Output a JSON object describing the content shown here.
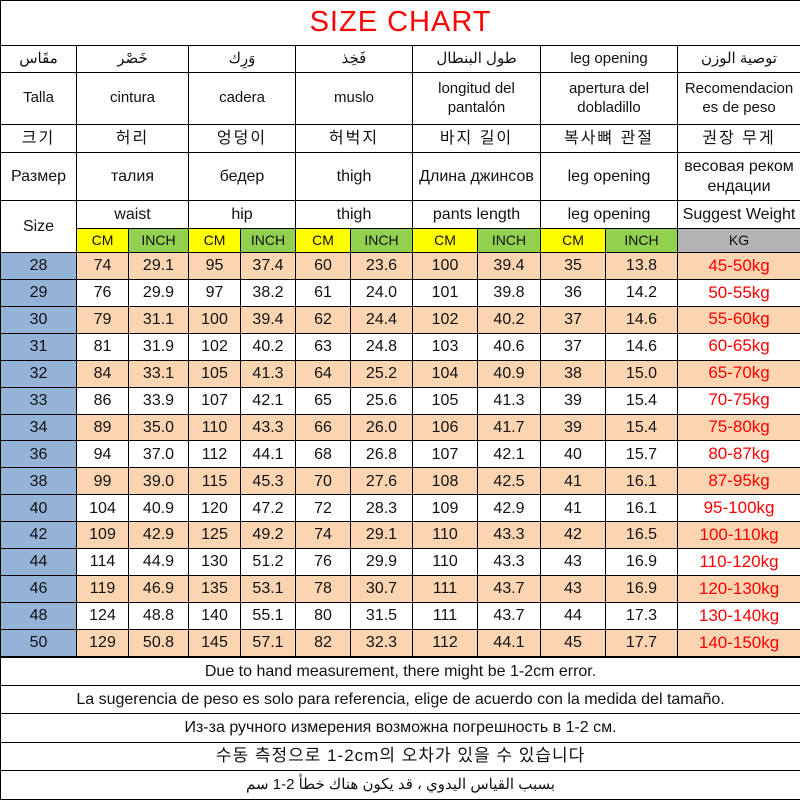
{
  "chart_data": {
    "type": "table",
    "title": "SIZE CHART",
    "header_rows": {
      "arabic": [
        "مقَاس",
        "خَصْر",
        "وَرِك",
        "فَخِذ",
        "طول البنطال",
        "leg opening",
        "توصية الوزن"
      ],
      "spanish": [
        "Talla",
        "cintura",
        "cadera",
        "muslo",
        "longitud del pantalón",
        "apertura del dobladillo",
        "Recomendaciones de peso"
      ],
      "korean": [
        "크기",
        "허리",
        "엉덩이",
        "허벅지",
        "바지 길이",
        "복사뼈 관절",
        "권장 무게"
      ],
      "russian": [
        "Размер",
        "талия",
        "бедер",
        "thigh",
        "Длина джинсов",
        "leg opening",
        "весовая рекомендации"
      ],
      "english": [
        "Size",
        "waist",
        "hip",
        "thigh",
        "pants length",
        "leg opening",
        "Suggest Weight"
      ]
    },
    "units": {
      "cm": "CM",
      "inch": "INCH",
      "kg": "KG"
    },
    "rows": [
      {
        "size": "28",
        "values": [
          "74",
          "29.1",
          "95",
          "37.4",
          "60",
          "23.6",
          "100",
          "39.4",
          "35",
          "13.8"
        ],
        "weight": "45-50kg"
      },
      {
        "size": "29",
        "values": [
          "76",
          "29.9",
          "97",
          "38.2",
          "61",
          "24.0",
          "101",
          "39.8",
          "36",
          "14.2"
        ],
        "weight": "50-55kg"
      },
      {
        "size": "30",
        "values": [
          "79",
          "31.1",
          "100",
          "39.4",
          "62",
          "24.4",
          "102",
          "40.2",
          "37",
          "14.6"
        ],
        "weight": "55-60kg"
      },
      {
        "size": "31",
        "values": [
          "81",
          "31.9",
          "102",
          "40.2",
          "63",
          "24.8",
          "103",
          "40.6",
          "37",
          "14.6"
        ],
        "weight": "60-65kg"
      },
      {
        "size": "32",
        "values": [
          "84",
          "33.1",
          "105",
          "41.3",
          "64",
          "25.2",
          "104",
          "40.9",
          "38",
          "15.0"
        ],
        "weight": "65-70kg"
      },
      {
        "size": "33",
        "values": [
          "86",
          "33.9",
          "107",
          "42.1",
          "65",
          "25.6",
          "105",
          "41.3",
          "39",
          "15.4"
        ],
        "weight": "70-75kg"
      },
      {
        "size": "34",
        "values": [
          "89",
          "35.0",
          "110",
          "43.3",
          "66",
          "26.0",
          "106",
          "41.7",
          "39",
          "15.4"
        ],
        "weight": "75-80kg"
      },
      {
        "size": "36",
        "values": [
          "94",
          "37.0",
          "112",
          "44.1",
          "68",
          "26.8",
          "107",
          "42.1",
          "40",
          "15.7"
        ],
        "weight": "80-87kg"
      },
      {
        "size": "38",
        "values": [
          "99",
          "39.0",
          "115",
          "45.3",
          "70",
          "27.6",
          "108",
          "42.5",
          "41",
          "16.1"
        ],
        "weight": "87-95kg"
      },
      {
        "size": "40",
        "values": [
          "104",
          "40.9",
          "120",
          "47.2",
          "72",
          "28.3",
          "109",
          "42.9",
          "41",
          "16.1"
        ],
        "weight": "95-100kg"
      },
      {
        "size": "42",
        "values": [
          "109",
          "42.9",
          "125",
          "49.2",
          "74",
          "29.1",
          "110",
          "43.3",
          "42",
          "16.5"
        ],
        "weight": "100-110kg"
      },
      {
        "size": "44",
        "values": [
          "114",
          "44.9",
          "130",
          "51.2",
          "76",
          "29.9",
          "110",
          "43.3",
          "43",
          "16.9"
        ],
        "weight": "110-120kg"
      },
      {
        "size": "46",
        "values": [
          "119",
          "46.9",
          "135",
          "53.1",
          "78",
          "30.7",
          "111",
          "43.7",
          "43",
          "16.9"
        ],
        "weight": "120-130kg"
      },
      {
        "size": "48",
        "values": [
          "124",
          "48.8",
          "140",
          "55.1",
          "80",
          "31.5",
          "111",
          "43.7",
          "44",
          "17.3"
        ],
        "weight": "130-140kg"
      },
      {
        "size": "50",
        "values": [
          "129",
          "50.8",
          "145",
          "57.1",
          "82",
          "32.3",
          "112",
          "44.1",
          "45",
          "17.7"
        ],
        "weight": "140-150kg"
      }
    ],
    "notes": {
      "english": "Due to hand measurement, there might be 1-2cm error.",
      "spanish": "La sugerencia de peso es solo para referencia, elige de acuerdo con la medida del tamaño.",
      "russian": "Из-за ручного измерения возможна погрешность в 1-2 см.",
      "korean": "수동 측정으로 1-2cm의 오차가 있을 수 있습니다",
      "arabic": "بسبب القياس اليدوي ، قد يكون هناك خطأ 2-1 سم"
    }
  },
  "colors": {
    "accent_red": "#FF0000",
    "cm_bg": "#FFFF00",
    "inch_bg": "#92D050",
    "kg_bg": "#B3B3B3",
    "size_col_bg": "#95B3D7",
    "row_alt_bg": "#FBD5B1"
  }
}
